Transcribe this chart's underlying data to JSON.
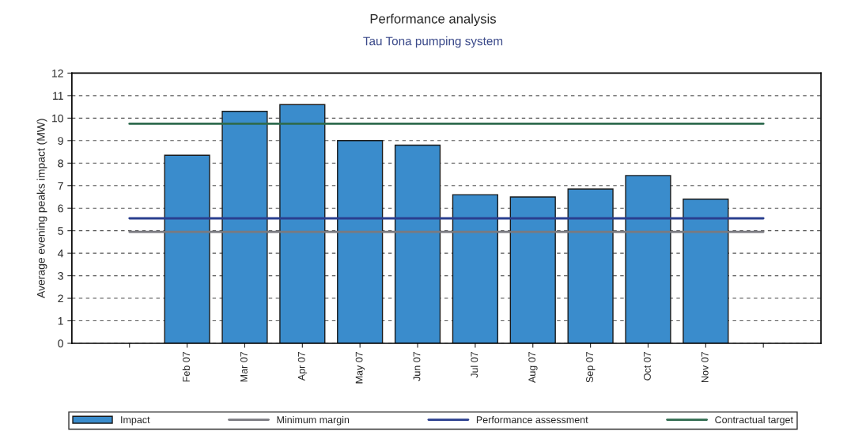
{
  "chart_data": {
    "type": "bar",
    "title": "Performance analysis",
    "subtitle": "Tau Tona pumping system",
    "ylabel": "Average evening peaks impact (MW)",
    "categories": [
      null,
      "Feb 07",
      "Mar 07",
      "Apr 07",
      "May 07",
      "Jun 07",
      "Jul 07",
      "Aug 07",
      "Sep 07",
      "Oct 07",
      "Nov 07",
      null
    ],
    "series": [
      {
        "name": "Impact",
        "color": "#3a8ccc",
        "values": [
          null,
          8.35,
          10.3,
          10.6,
          9.0,
          8.8,
          6.6,
          6.5,
          6.85,
          7.45,
          6.4,
          null
        ]
      },
      {
        "name": "Minimum margin",
        "type": "line",
        "color": "#7a7a80",
        "values": [
          4.95,
          4.95,
          4.95,
          4.95,
          4.95,
          4.95,
          4.95,
          4.95,
          4.95,
          4.95,
          4.95,
          4.95
        ]
      },
      {
        "name": "Performance assessment",
        "type": "line",
        "color": "#2a3f8f",
        "values": [
          5.55,
          5.55,
          5.55,
          5.55,
          5.55,
          5.55,
          5.55,
          5.55,
          5.55,
          5.55,
          5.55,
          5.55
        ]
      },
      {
        "name": "Contractual target",
        "type": "line",
        "color": "#2f6b4f",
        "values": [
          9.75,
          9.75,
          9.75,
          9.75,
          9.75,
          9.75,
          9.75,
          9.75,
          9.75,
          9.75,
          9.75,
          9.75
        ]
      }
    ],
    "ylim": [
      0,
      12
    ],
    "yticks": [
      0,
      1,
      2,
      3,
      4,
      5,
      6,
      7,
      8,
      9,
      10,
      11,
      12
    ],
    "grid": "y",
    "legend": "bottom"
  }
}
